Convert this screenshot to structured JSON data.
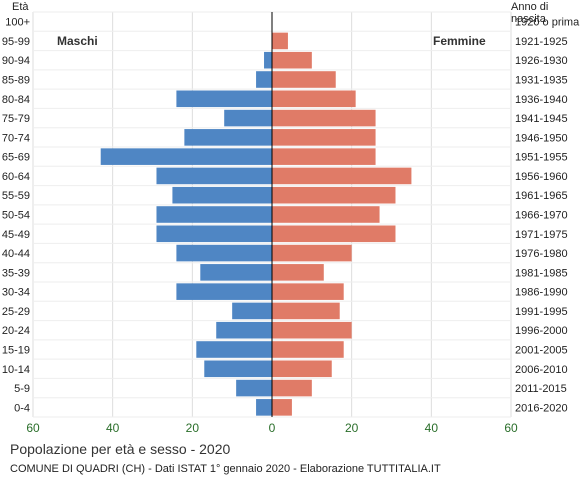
{
  "header": {
    "age_label": "Età",
    "birth_label": "Anno di nascita"
  },
  "chart_data": {
    "type": "bar",
    "orientation": "horizontal-population-pyramid",
    "title": "Popolazione per età e sesso - 2020",
    "subtitle": "COMUNE DI QUADRI (CH) - Dati ISTAT 1° gennaio 2020 - Elaborazione TUTTITALIA.IT",
    "xlim": [
      -60,
      60
    ],
    "x_ticks": [
      "60",
      "40",
      "20",
      "0",
      "20",
      "40",
      "60"
    ],
    "grid": true,
    "categories": [
      "100+",
      "95-99",
      "90-94",
      "85-89",
      "80-84",
      "75-79",
      "70-74",
      "65-69",
      "60-64",
      "55-59",
      "50-54",
      "45-49",
      "40-44",
      "35-39",
      "30-34",
      "25-29",
      "20-24",
      "15-19",
      "10-14",
      "5-9",
      "0-4"
    ],
    "birth_years": [
      "1920 o prima",
      "1921-1925",
      "1926-1930",
      "1931-1935",
      "1936-1940",
      "1941-1945",
      "1946-1950",
      "1951-1955",
      "1956-1960",
      "1961-1965",
      "1966-1970",
      "1971-1975",
      "1976-1980",
      "1981-1985",
      "1986-1990",
      "1991-1995",
      "1996-2000",
      "2001-2005",
      "2006-2010",
      "2011-2015",
      "2016-2020"
    ],
    "series": [
      {
        "name": "Maschi",
        "color": "#4f86c4",
        "values": [
          0,
          0,
          2,
          4,
          24,
          12,
          22,
          43,
          29,
          25,
          29,
          29,
          24,
          18,
          24,
          10,
          14,
          19,
          17,
          9,
          4
        ]
      },
      {
        "name": "Femmine",
        "color": "#e07b67",
        "values": [
          0,
          4,
          10,
          16,
          21,
          26,
          26,
          26,
          35,
          31,
          27,
          31,
          20,
          13,
          18,
          17,
          20,
          18,
          15,
          10,
          5
        ]
      }
    ]
  }
}
